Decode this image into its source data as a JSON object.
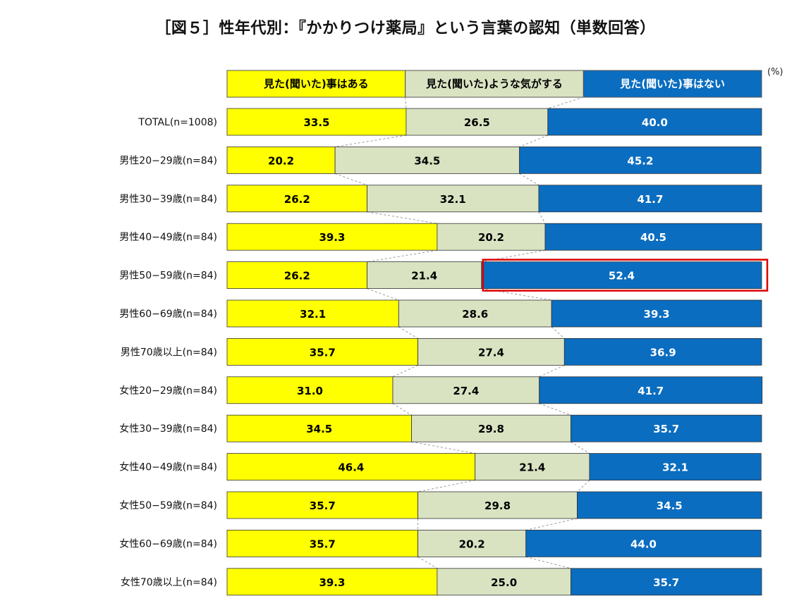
{
  "chart_data": {
    "type": "bar",
    "stacked": true,
    "orientation": "horizontal",
    "normalized": true,
    "title": "［図５］性年代別：『かかりつけ薬局』という言葉の認知（単数回答）",
    "unit": "(%)",
    "xlim": [
      0,
      100
    ],
    "grid": false,
    "legend_position": "top",
    "categories": [
      "TOTAL(n=1008)",
      "男性20−29歳(n=84)",
      "男性30−39歳(n=84)",
      "男性40−49歳(n=84)",
      "男性50−59歳(n=84)",
      "男性60−69歳(n=84)",
      "男性70歳以上(n=84)",
      "女性20−29歳(n=84)",
      "女性30−39歳(n=84)",
      "女性40−49歳(n=84)",
      "女性50−59歳(n=84)",
      "女性60−69歳(n=84)",
      "女性70歳以上(n=84)"
    ],
    "series": [
      {
        "name": "見た(聞いた)事はある",
        "color": "#ffff00",
        "text_color": "#000000",
        "values": [
          33.5,
          20.2,
          26.2,
          39.3,
          26.2,
          32.1,
          35.7,
          31.0,
          34.5,
          46.4,
          35.7,
          35.7,
          39.3
        ],
        "labels": [
          "33.5",
          "20.2",
          "26.2",
          "39.3",
          "26.2",
          "32.1",
          "35.7",
          "31.0",
          "34.5",
          "46.4",
          "35.7",
          "35.7",
          "39.3"
        ]
      },
      {
        "name": "見た(聞いた)ような気がする",
        "color": "#d9e3c2",
        "text_color": "#000000",
        "values": [
          26.5,
          34.5,
          32.1,
          20.2,
          21.4,
          28.6,
          27.4,
          27.4,
          29.8,
          21.4,
          29.8,
          20.2,
          25.0
        ],
        "labels": [
          "26.5",
          "34.5",
          "32.1",
          "20.2",
          "21.4",
          "28.6",
          "27.4",
          "27.4",
          "29.8",
          "21.4",
          "29.8",
          "20.2",
          "25.0"
        ]
      },
      {
        "name": "見た(聞いた)事はない",
        "color": "#0a6dc0",
        "text_color": "#ffffff",
        "values": [
          40.0,
          45.2,
          41.7,
          40.5,
          52.4,
          39.3,
          36.9,
          41.7,
          35.7,
          32.1,
          34.5,
          44.0,
          35.7
        ],
        "labels": [
          "40.0",
          "45.2",
          "41.7",
          "40.5",
          "52.4",
          "39.3",
          "36.9",
          "41.7",
          "35.7",
          "32.1",
          "34.5",
          "44.0",
          "35.7"
        ]
      }
    ],
    "highlight": {
      "series_index": 2,
      "category_index": 4,
      "color": "#dd0000"
    }
  }
}
